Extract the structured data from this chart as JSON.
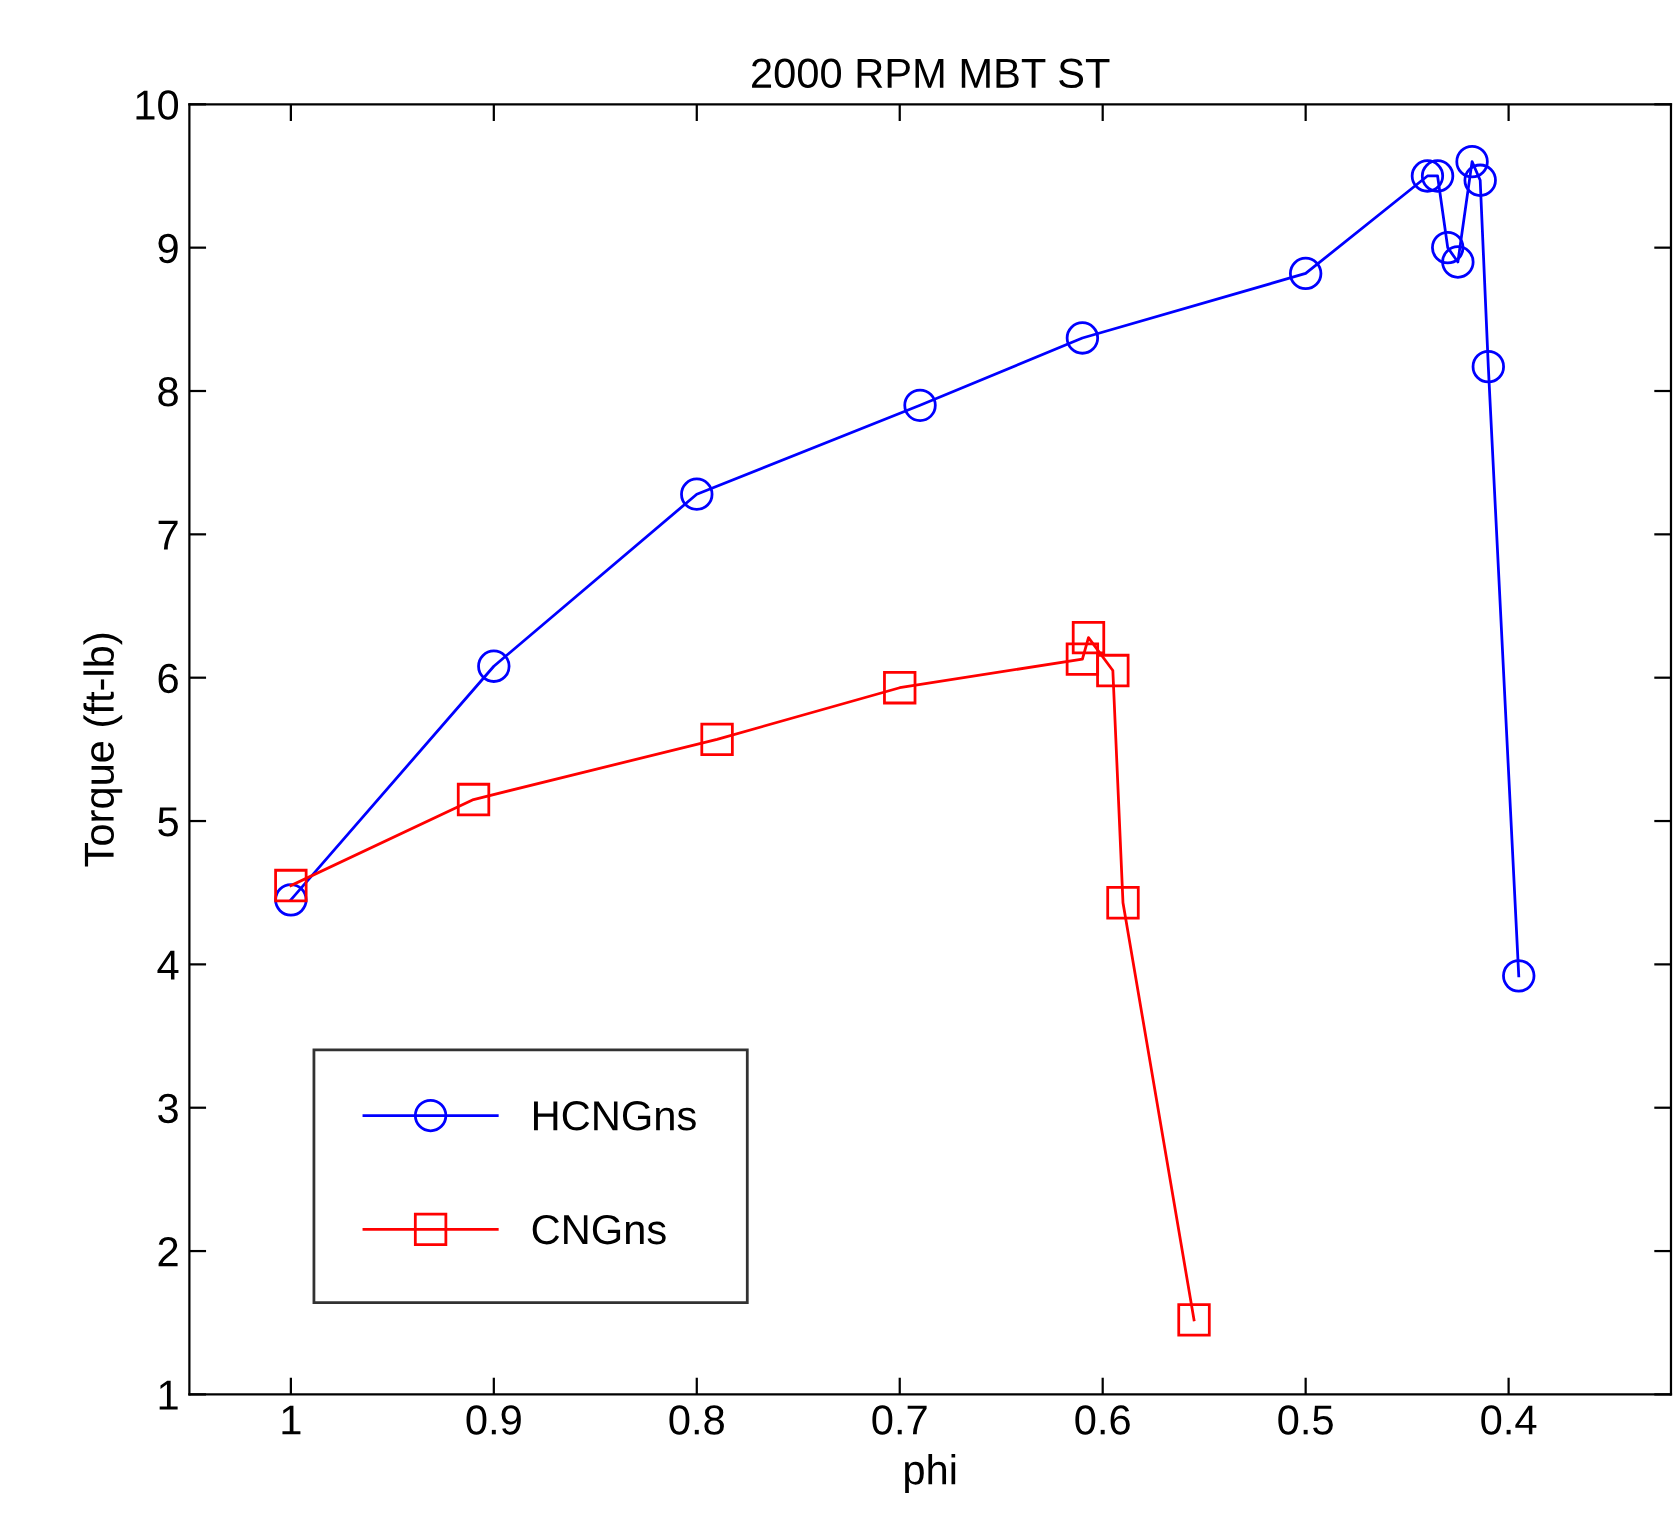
{
  "chart_data": {
    "type": "line",
    "title": "2000 RPM MBT ST",
    "xlabel": "phi",
    "ylabel": "Torque (ft-lb)",
    "xlim": [
      1.05,
      0.32
    ],
    "xticks": [
      1,
      0.9,
      0.8,
      0.7,
      0.6,
      0.5,
      0.4
    ],
    "ylim": [
      1,
      10
    ],
    "yticks": [
      1,
      2,
      3,
      4,
      5,
      6,
      7,
      8,
      9,
      10
    ],
    "grid": false,
    "legend": "bottom left",
    "line_style": "solid",
    "series": [
      {
        "name": "HCNGns",
        "color": "#0000ff",
        "marker": "circle",
        "x": [
          1.0,
          0.9,
          0.8,
          0.69,
          0.61,
          0.5,
          0.44,
          0.435,
          0.43,
          0.425,
          0.418,
          0.414,
          0.41,
          0.395
        ],
        "values": [
          4.45,
          6.08,
          7.28,
          7.9,
          8.37,
          8.82,
          9.5,
          9.5,
          9.0,
          8.9,
          9.6,
          9.47,
          8.17,
          3.92
        ]
      },
      {
        "name": "CNGns",
        "color": "#ff0000",
        "marker": "square",
        "x": [
          1.0,
          0.91,
          0.79,
          0.7,
          0.61,
          0.607,
          0.595,
          0.59,
          0.555
        ],
        "values": [
          4.55,
          5.15,
          5.57,
          5.93,
          6.13,
          6.28,
          6.05,
          4.43,
          1.52
        ]
      }
    ]
  }
}
